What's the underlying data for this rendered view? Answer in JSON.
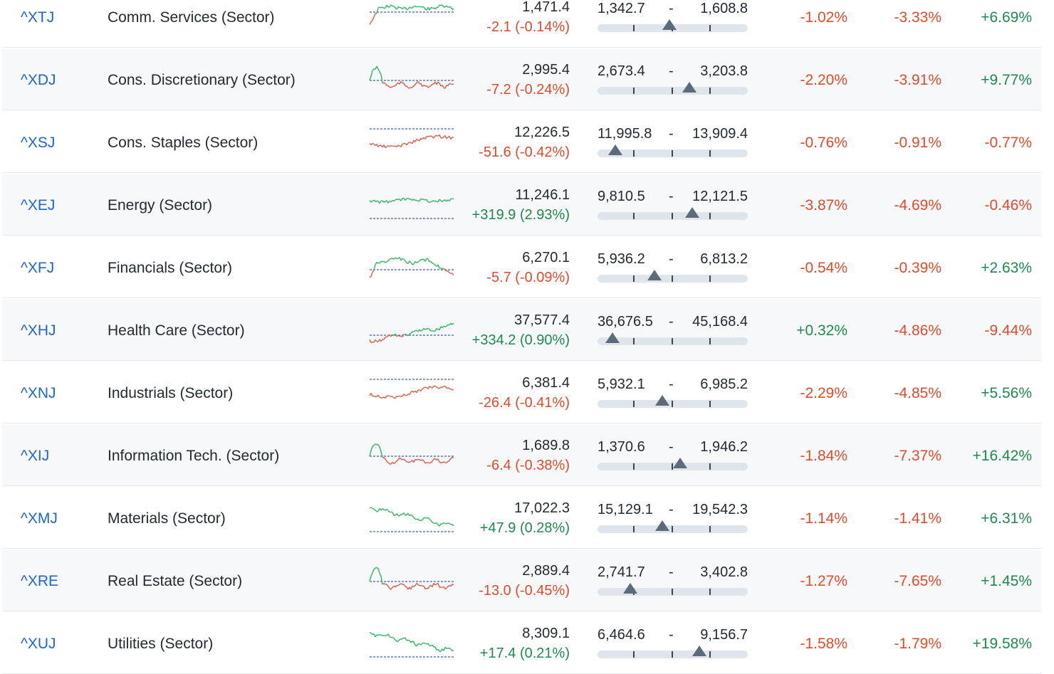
{
  "colors": {
    "negative": "#e04b2b",
    "positive": "#1f8a4c",
    "link": "#1f66c9",
    "marker": "#5b6b7c",
    "range_track": "#dfe5eb",
    "spark_neg": "#d9654f",
    "spark_pos": "#3cb86a",
    "baseline": "#3b5fb5"
  },
  "rows": [
    {
      "symbol": "^XTJ",
      "name": "Comm. Services (Sector)",
      "price": "1,471.4",
      "change": "-2.1 (-0.14%)",
      "change_dir": "neg",
      "low": "1,342.7",
      "high": "1,608.8",
      "range_pos": 0.48,
      "p1": "-1.02%",
      "p2": "-3.33%",
      "p3": "+6.69%",
      "trend": "up"
    },
    {
      "symbol": "^XDJ",
      "name": "Cons. Discretionary (Sector)",
      "price": "2,995.4",
      "change": "-7.2 (-0.24%)",
      "change_dir": "neg",
      "low": "2,673.4",
      "high": "3,203.8",
      "range_pos": 0.61,
      "p1": "-2.20%",
      "p2": "-3.91%",
      "p3": "+9.77%",
      "trend": "spike_down"
    },
    {
      "symbol": "^XSJ",
      "name": "Cons. Staples (Sector)",
      "price": "12,226.5",
      "change": "-51.6 (-0.42%)",
      "change_dir": "neg",
      "low": "11,995.8",
      "high": "13,909.4",
      "range_pos": 0.12,
      "p1": "-0.76%",
      "p2": "-0.91%",
      "p3": "-0.77%",
      "trend": "below"
    },
    {
      "symbol": "^XEJ",
      "name": "Energy (Sector)",
      "price": "11,246.1",
      "change": "+319.9 (2.93%)",
      "change_dir": "pos",
      "low": "9,810.5",
      "high": "12,121.5",
      "range_pos": 0.63,
      "p1": "-3.87%",
      "p2": "-4.69%",
      "p3": "-0.46%",
      "trend": "above"
    },
    {
      "symbol": "^XFJ",
      "name": "Financials (Sector)",
      "price": "6,270.1",
      "change": "-5.7 (-0.09%)",
      "change_dir": "neg",
      "low": "5,936.2",
      "high": "6,813.2",
      "range_pos": 0.38,
      "p1": "-0.54%",
      "p2": "-0.39%",
      "p3": "+2.63%",
      "trend": "up_fade"
    },
    {
      "symbol": "^XHJ",
      "name": "Health Care (Sector)",
      "price": "37,577.4",
      "change": "+334.2 (0.90%)",
      "change_dir": "pos",
      "low": "36,676.5",
      "high": "45,168.4",
      "range_pos": 0.1,
      "p1": "+0.32%",
      "p2": "-4.86%",
      "p3": "-9.44%",
      "trend": "rise"
    },
    {
      "symbol": "^XNJ",
      "name": "Industrials (Sector)",
      "price": "6,381.4",
      "change": "-26.4 (-0.41%)",
      "change_dir": "neg",
      "low": "5,932.1",
      "high": "6,985.2",
      "range_pos": 0.43,
      "p1": "-2.29%",
      "p2": "-4.85%",
      "p3": "+5.56%",
      "trend": "below"
    },
    {
      "symbol": "^XIJ",
      "name": "Information Tech. (Sector)",
      "price": "1,689.8",
      "change": "-6.4 (-0.38%)",
      "change_dir": "neg",
      "low": "1,370.6",
      "high": "1,946.2",
      "range_pos": 0.55,
      "p1": "-1.84%",
      "p2": "-7.37%",
      "p3": "+16.42%",
      "trend": "spike_down"
    },
    {
      "symbol": "^XMJ",
      "name": "Materials (Sector)",
      "price": "17,022.3",
      "change": "+47.9 (0.28%)",
      "change_dir": "pos",
      "low": "15,129.1",
      "high": "19,542.3",
      "range_pos": 0.43,
      "p1": "-1.14%",
      "p2": "-1.41%",
      "p3": "+6.31%",
      "trend": "decline_above"
    },
    {
      "symbol": "^XRE",
      "name": "Real Estate (Sector)",
      "price": "2,889.4",
      "change": "-13.0 (-0.45%)",
      "change_dir": "neg",
      "low": "2,741.7",
      "high": "3,402.8",
      "range_pos": 0.22,
      "p1": "-1.27%",
      "p2": "-7.65%",
      "p3": "+1.45%",
      "trend": "spike_down"
    },
    {
      "symbol": "^XUJ",
      "name": "Utilities (Sector)",
      "price": "8,309.1",
      "change": "+17.4 (0.21%)",
      "change_dir": "pos",
      "low": "6,464.6",
      "high": "9,156.7",
      "range_pos": 0.68,
      "p1": "-1.58%",
      "p2": "-1.79%",
      "p3": "+19.58%",
      "trend": "decline_above"
    }
  ]
}
